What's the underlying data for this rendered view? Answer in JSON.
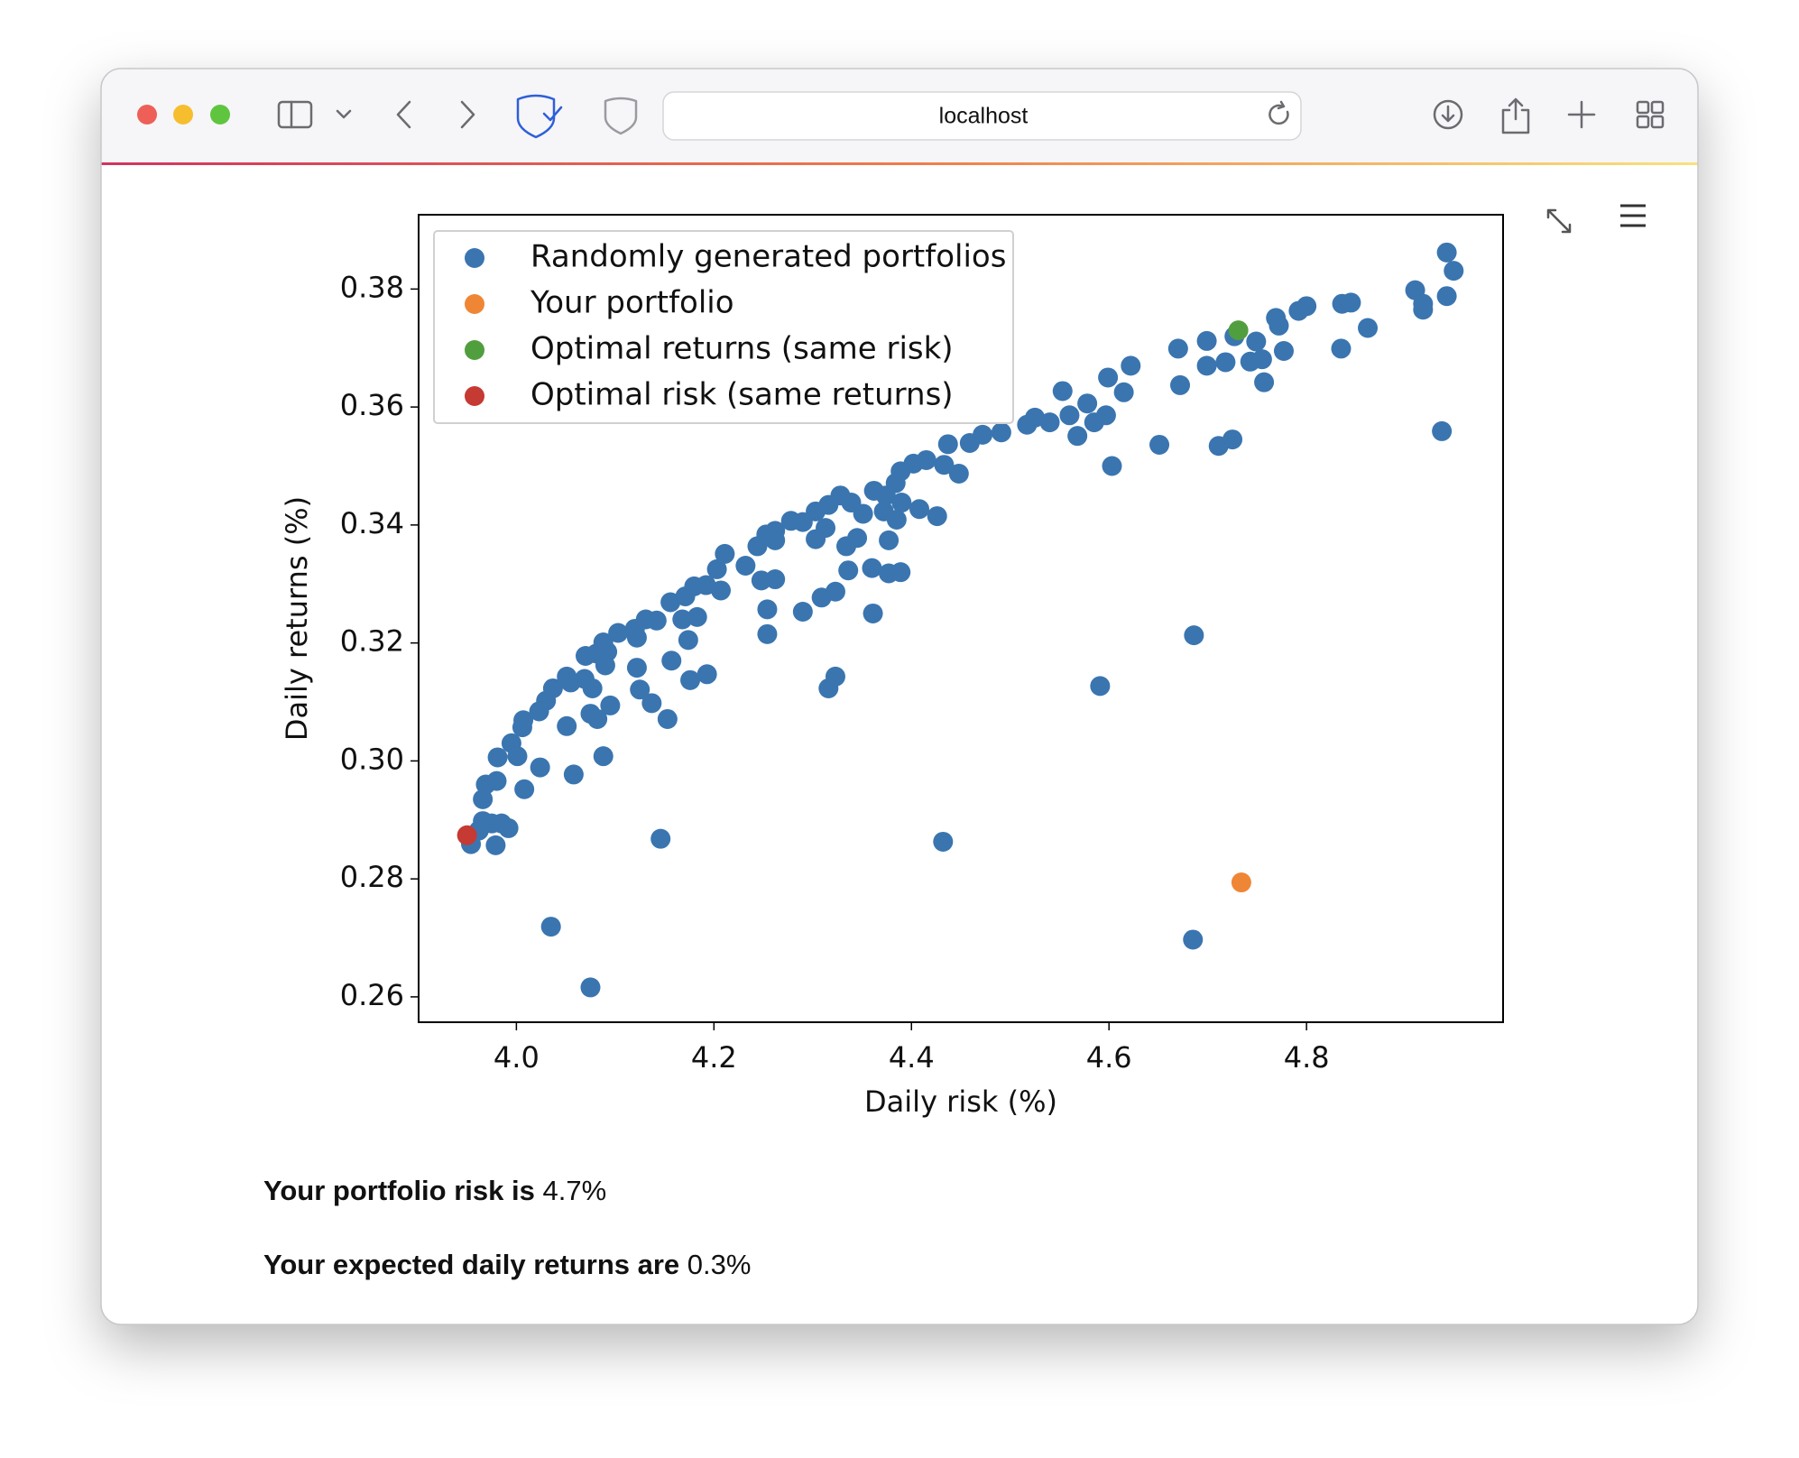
{
  "browser": {
    "url": "localhost"
  },
  "chart_data": {
    "type": "scatter",
    "xlabel": "Daily risk (%)",
    "ylabel": "Daily returns (%)",
    "xlim": [
      3.901,
      4.999
    ],
    "ylim": [
      0.2557,
      0.3926
    ],
    "xticks": [
      {
        "value": 4,
        "label": "4.0"
      },
      4.2,
      4.4,
      4.6,
      4.8
    ],
    "yticks": [
      0.26,
      0.28,
      {
        "value": 0.3,
        "label": "0.30"
      },
      0.32,
      0.34,
      0.36,
      0.38
    ],
    "legend": "upper left",
    "series": [
      {
        "name": "Randomly generated portfolios",
        "color": "#3a75b0",
        "x": [
          4.942,
          4.949,
          4.91,
          4.918,
          4.918,
          4.942,
          4.937,
          4.836,
          4.845,
          4.862,
          4.835,
          4.8,
          4.792,
          4.769,
          4.772,
          4.777,
          4.727,
          4.749,
          4.699,
          4.67,
          4.699,
          4.718,
          4.743,
          4.755,
          4.757,
          4.672,
          4.725,
          4.711,
          4.651,
          4.622,
          4.599,
          4.615,
          4.597,
          4.603,
          4.553,
          4.578,
          4.568,
          4.585,
          4.56,
          4.54,
          4.517,
          4.525,
          4.491,
          4.472,
          4.459,
          4.437,
          4.448,
          4.433,
          4.415,
          4.402,
          4.389,
          4.384,
          4.374,
          4.362,
          4.426,
          4.408,
          4.39,
          4.385,
          4.372,
          4.351,
          4.339,
          4.328,
          4.316,
          4.303,
          4.29,
          4.278,
          4.262,
          4.253,
          4.244,
          4.262,
          4.313,
          4.303,
          4.345,
          4.334,
          4.377,
          4.36,
          4.377,
          4.389,
          4.336,
          4.323,
          4.309,
          4.29,
          4.361,
          4.254,
          4.254,
          4.262,
          4.248,
          4.232,
          4.211,
          4.203,
          4.207,
          4.192,
          4.18,
          4.171,
          4.156,
          4.168,
          4.183,
          4.174,
          4.157,
          4.142,
          4.131,
          4.12,
          4.122,
          4.103,
          4.088,
          4.092,
          4.081,
          4.07,
          4.09,
          4.122,
          4.176,
          4.193,
          4.125,
          4.137,
          4.153,
          4.095,
          4.077,
          4.069,
          4.051,
          4.055,
          4.037,
          4.03,
          4.023,
          4.007,
          4.006,
          4.075,
          4.082,
          4.051,
          3.995,
          4.001,
          3.981,
          4.024,
          4.088,
          4.058,
          4.008,
          3.98,
          3.969,
          3.966,
          3.966,
          3.975,
          3.985,
          3.992,
          3.962,
          3.954,
          3.979,
          4.146,
          4.432,
          4.035,
          4.075,
          4.685,
          4.686,
          4.591,
          4.316,
          4.323
        ],
        "values": [
          0.3862,
          0.3831,
          0.3798,
          0.3775,
          0.3765,
          0.3788,
          0.3559,
          0.3775,
          0.3777,
          0.3734,
          0.3699,
          0.3771,
          0.3763,
          0.3751,
          0.3738,
          0.3695,
          0.372,
          0.3711,
          0.3712,
          0.3699,
          0.367,
          0.3676,
          0.3677,
          0.3681,
          0.3642,
          0.3637,
          0.3545,
          0.3534,
          0.3536,
          0.367,
          0.365,
          0.3625,
          0.3586,
          0.35,
          0.3627,
          0.3606,
          0.3551,
          0.3574,
          0.3586,
          0.3574,
          0.357,
          0.3582,
          0.3557,
          0.3553,
          0.3539,
          0.3537,
          0.3487,
          0.3502,
          0.351,
          0.3504,
          0.3491,
          0.3471,
          0.345,
          0.3458,
          0.3415,
          0.3427,
          0.3438,
          0.3409,
          0.3423,
          0.3419,
          0.3438,
          0.345,
          0.3434,
          0.3423,
          0.3405,
          0.3407,
          0.339,
          0.3384,
          0.3364,
          0.3374,
          0.3395,
          0.3376,
          0.3378,
          0.3364,
          0.3374,
          0.3327,
          0.3318,
          0.332,
          0.3323,
          0.3287,
          0.3277,
          0.3253,
          0.325,
          0.3257,
          0.3215,
          0.3308,
          0.3306,
          0.3331,
          0.3351,
          0.3325,
          0.3289,
          0.3298,
          0.3296,
          0.3279,
          0.3269,
          0.324,
          0.3244,
          0.3205,
          0.317,
          0.3238,
          0.324,
          0.3224,
          0.3209,
          0.3217,
          0.3201,
          0.3185,
          0.3182,
          0.3178,
          0.3162,
          0.3158,
          0.3137,
          0.3147,
          0.3121,
          0.3098,
          0.3071,
          0.3094,
          0.3123,
          0.3139,
          0.3143,
          0.3133,
          0.3123,
          0.3102,
          0.3084,
          0.3069,
          0.3057,
          0.308,
          0.3071,
          0.3059,
          0.303,
          0.3008,
          0.3006,
          0.2989,
          0.3008,
          0.2977,
          0.2952,
          0.2966,
          0.296,
          0.2935,
          0.2898,
          0.2894,
          0.2894,
          0.2886,
          0.2882,
          0.2859,
          0.2857,
          0.2868,
          0.2863,
          0.2719,
          0.2616,
          0.2697,
          0.3213,
          0.3127,
          0.3123,
          0.3143
        ]
      },
      {
        "name": "Your portfolio",
        "color": "#ef8636",
        "x": [
          4.734
        ],
        "values": [
          0.2794
        ]
      },
      {
        "name": "Optimal returns (same risk)",
        "color": "#519e3e",
        "x": [
          4.731
        ],
        "values": [
          0.373
        ]
      },
      {
        "name": "Optimal risk (same returns)",
        "color": "#c53a32",
        "x": [
          3.95
        ],
        "values": [
          0.2874
        ]
      }
    ]
  },
  "summary": [
    {
      "label": "Your portfolio risk is",
      "value": "4.7%"
    },
    {
      "label": "Your expected daily returns are",
      "value": "0.3%"
    }
  ]
}
